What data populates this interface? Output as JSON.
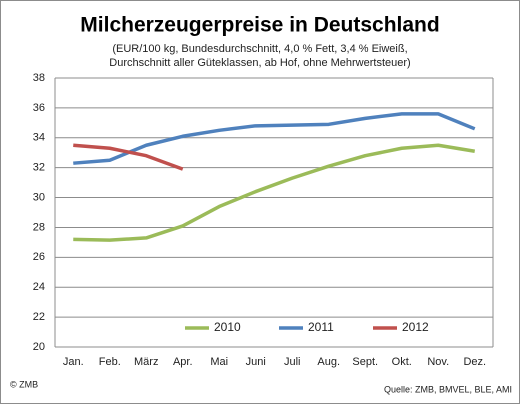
{
  "chart_data": {
    "type": "line",
    "title": "Milcherzeugerpreise in Deutschland",
    "subtitle": [
      "(EUR/100 kg, Bundesdurchschnitt, 4,0 % Fett, 3,4 % Eiweiß,",
      "Durchschnitt aller Güteklassen, ab Hof, ohne Mehrwertsteuer)"
    ],
    "categories": [
      "Jan.",
      "Feb.",
      "März",
      "Apr.",
      "Mai",
      "Juni",
      "Juli",
      "Aug.",
      "Sept.",
      "Okt.",
      "Nov.",
      "Dez."
    ],
    "series": [
      {
        "name": "2010",
        "color": "#9bbb59",
        "values": [
          27.2,
          27.15,
          27.3,
          28.1,
          29.4,
          30.4,
          31.3,
          32.1,
          32.8,
          33.3,
          33.5,
          33.1
        ]
      },
      {
        "name": "2011",
        "color": "#4f81bd",
        "values": [
          32.3,
          32.5,
          33.5,
          34.1,
          34.5,
          34.8,
          34.85,
          34.9,
          35.3,
          35.6,
          35.6,
          34.6
        ]
      },
      {
        "name": "2012",
        "color": "#c0504d",
        "values": [
          33.5,
          33.3,
          32.8,
          31.9,
          null,
          null,
          null,
          null,
          null,
          null,
          null,
          null
        ]
      }
    ],
    "ylim": [
      20,
      38
    ],
    "yticks": [
      20,
      22,
      24,
      26,
      28,
      30,
      32,
      34,
      36,
      38
    ],
    "grid": true,
    "legend": "bottom",
    "copyright": "© ZMB",
    "source": "Quelle: ZMB, BMVEL, BLE, AMI"
  }
}
